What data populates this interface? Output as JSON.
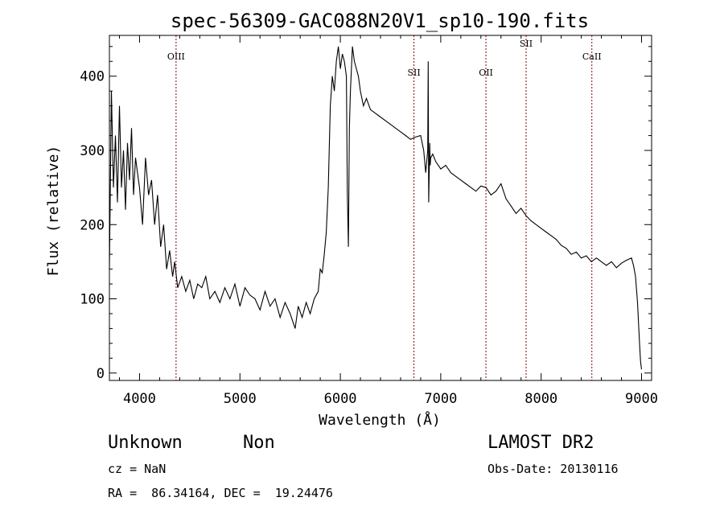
{
  "chart_data": {
    "type": "line",
    "title": "spec-56309-GAC088N20V1_sp10-190.fits",
    "xlabel": "Wavelength (Å)",
    "ylabel": "Flux (relative)",
    "xlim": [
      3700,
      9100
    ],
    "ylim": [
      -10,
      455
    ],
    "xticks": [
      4000,
      5000,
      6000,
      7000,
      8000,
      9000
    ],
    "yticks": [
      0,
      100,
      200,
      300,
      400
    ],
    "line_color": "#000000",
    "marker_color": "#8b0000",
    "lines": [
      {
        "label": "OIII",
        "wavelength": 4364
      },
      {
        "label": "SII",
        "wavelength": 6733
      },
      {
        "label": "OII",
        "wavelength": 7450
      },
      {
        "label": "SII",
        "wavelength": 7850
      },
      {
        "label": "CaII",
        "wavelength": 8505
      }
    ],
    "series": [
      {
        "x": [
          3700,
          3720,
          3740,
          3760,
          3780,
          3800,
          3820,
          3840,
          3860,
          3880,
          3900,
          3920,
          3940,
          3960,
          3980,
          4000,
          4030,
          4060,
          4090,
          4120,
          4150,
          4180,
          4210,
          4240,
          4270,
          4300,
          4330,
          4350,
          4380,
          4420,
          4460,
          4500,
          4540,
          4580,
          4620,
          4660,
          4700,
          4750,
          4800,
          4850,
          4900,
          4950,
          5000,
          5050,
          5100,
          5150,
          5200,
          5250,
          5300,
          5350,
          5400,
          5450,
          5500,
          5550,
          5580,
          5620,
          5660,
          5700,
          5740,
          5780,
          5800,
          5820,
          5840,
          5860,
          5880,
          5900,
          5920,
          5940,
          5960,
          5980,
          6000,
          6020,
          6040,
          6060,
          6070,
          6080,
          6090,
          6100,
          6120,
          6140,
          6160,
          6180,
          6200,
          6230,
          6260,
          6300,
          6350,
          6400,
          6450,
          6500,
          6550,
          6600,
          6650,
          6700,
          6750,
          6800,
          6830,
          6850,
          6870,
          6875,
          6880,
          6890,
          6895,
          6900,
          6920,
          6950,
          7000,
          7050,
          7100,
          7150,
          7200,
          7250,
          7300,
          7350,
          7400,
          7450,
          7500,
          7550,
          7600,
          7650,
          7700,
          7750,
          7800,
          7850,
          7900,
          7950,
          8000,
          8050,
          8100,
          8150,
          8200,
          8250,
          8300,
          8350,
          8400,
          8450,
          8500,
          8550,
          8600,
          8650,
          8700,
          8750,
          8800,
          8850,
          8900,
          8920,
          8940,
          8960,
          8980,
          8990,
          9000
        ],
        "y": [
          140,
          380,
          250,
          320,
          230,
          360,
          250,
          300,
          220,
          310,
          260,
          330,
          240,
          290,
          270,
          250,
          200,
          290,
          240,
          260,
          200,
          240,
          170,
          200,
          140,
          165,
          130,
          150,
          115,
          130,
          110,
          125,
          100,
          120,
          115,
          130,
          100,
          110,
          95,
          115,
          100,
          120,
          90,
          115,
          105,
          100,
          85,
          110,
          90,
          100,
          75,
          95,
          80,
          60,
          90,
          75,
          95,
          80,
          100,
          110,
          140,
          135,
          160,
          190,
          250,
          360,
          400,
          380,
          420,
          440,
          410,
          430,
          420,
          400,
          240,
          170,
          330,
          380,
          440,
          420,
          410,
          400,
          380,
          360,
          370,
          355,
          350,
          345,
          340,
          335,
          330,
          325,
          320,
          315,
          318,
          320,
          300,
          270,
          300,
          420,
          230,
          310,
          280,
          290,
          295,
          285,
          275,
          280,
          270,
          265,
          260,
          255,
          250,
          245,
          252,
          250,
          240,
          245,
          255,
          235,
          225,
          215,
          222,
          212,
          205,
          200,
          195,
          190,
          185,
          180,
          172,
          168,
          160,
          163,
          155,
          158,
          150,
          155,
          150,
          145,
          150,
          142,
          148,
          152,
          155,
          145,
          130,
          95,
          40,
          15,
          5
        ]
      }
    ]
  },
  "info": {
    "object_class": "Unknown",
    "subclass": "Non",
    "survey": "LAMOST DR2",
    "cz": "cz = NaN",
    "obs_date": "Obs-Date: 20130116",
    "coords": "RA =  86.34164, DEC =  19.24476"
  }
}
